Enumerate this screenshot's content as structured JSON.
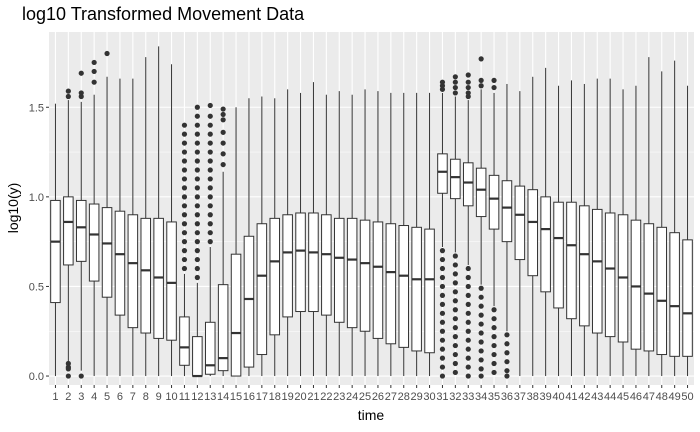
{
  "chart_data": {
    "type": "boxplot",
    "title": "log10 Transformed Movement Data",
    "xlabel": "time",
    "ylabel": "log10(y)",
    "ylim": [
      -0.05,
      1.92
    ],
    "y_ticks": [
      0.0,
      0.5,
      1.0,
      1.5
    ],
    "y_tick_labels": [
      "0.0",
      "0.5",
      "1.0",
      "1.5"
    ],
    "grid": true,
    "panel_background": "#ebebeb",
    "grid_color": "#ffffff",
    "box_fill": "#ffffff",
    "box_stroke": "#333333",
    "categories": [
      "1",
      "2",
      "3",
      "4",
      "5",
      "6",
      "7",
      "8",
      "9",
      "10",
      "11",
      "12",
      "13",
      "14",
      "15",
      "16",
      "17",
      "18",
      "19",
      "20",
      "21",
      "22",
      "23",
      "24",
      "25",
      "26",
      "27",
      "28",
      "29",
      "30",
      "31",
      "32",
      "33",
      "34",
      "35",
      "36",
      "37",
      "38",
      "39",
      "40",
      "41",
      "42",
      "43",
      "44",
      "45",
      "46",
      "47",
      "48",
      "49",
      "50"
    ],
    "boxes": [
      {
        "min": 0.0,
        "q1": 0.41,
        "median": 0.75,
        "q3": 0.98,
        "max": 1.52,
        "outliers": []
      },
      {
        "min": 0.06,
        "q1": 0.62,
        "median": 0.86,
        "q3": 1.0,
        "max": 1.54,
        "outliers": [
          1.56,
          1.59,
          0.07,
          0.05,
          0.04,
          0.0
        ]
      },
      {
        "min": 0.03,
        "q1": 0.64,
        "median": 0.83,
        "q3": 0.98,
        "max": 1.53,
        "outliers": [
          1.56,
          1.58,
          1.69,
          0.0
        ]
      },
      {
        "min": 0.0,
        "q1": 0.53,
        "median": 0.79,
        "q3": 0.96,
        "max": 1.57,
        "outliers": [
          1.64,
          1.7,
          1.75
        ]
      },
      {
        "min": 0.0,
        "q1": 0.44,
        "median": 0.74,
        "q3": 0.94,
        "max": 1.67,
        "outliers": [
          1.8
        ]
      },
      {
        "min": 0.0,
        "q1": 0.34,
        "median": 0.68,
        "q3": 0.92,
        "max": 1.66,
        "outliers": []
      },
      {
        "min": 0.0,
        "q1": 0.27,
        "median": 0.63,
        "q3": 0.9,
        "max": 1.66,
        "outliers": []
      },
      {
        "min": 0.0,
        "q1": 0.24,
        "median": 0.59,
        "q3": 0.88,
        "max": 1.78,
        "outliers": []
      },
      {
        "min": 0.0,
        "q1": 0.21,
        "median": 0.55,
        "q3": 0.88,
        "max": 1.84,
        "outliers": []
      },
      {
        "min": 0.0,
        "q1": 0.2,
        "median": 0.52,
        "q3": 0.86,
        "max": 1.74,
        "outliers": []
      },
      {
        "min": 0.0,
        "q1": 0.06,
        "median": 0.16,
        "q3": 0.33,
        "max": 0.57,
        "outliers": [
          0.6,
          0.65,
          0.7,
          0.75,
          0.8,
          0.85,
          0.9,
          0.95,
          1.0,
          1.05,
          1.1,
          1.15,
          1.2,
          1.25,
          1.3,
          1.35,
          1.4
        ]
      },
      {
        "min": 0.0,
        "q1": 0.0,
        "median": 0.0,
        "q3": 0.22,
        "max": 0.52,
        "outliers": [
          0.55,
          0.6,
          0.65,
          0.7,
          0.75,
          0.8,
          0.85,
          0.9,
          0.95,
          1.0,
          1.05,
          1.1,
          1.15,
          1.2,
          1.25,
          1.3,
          1.35,
          1.4,
          1.45,
          1.5
        ]
      },
      {
        "min": 0.0,
        "q1": 0.01,
        "median": 0.06,
        "q3": 0.3,
        "max": 0.72,
        "outliers": [
          0.75,
          0.8,
          0.85,
          0.9,
          0.95,
          1.0,
          1.05,
          1.1,
          1.15,
          1.2,
          1.25,
          1.3,
          1.35,
          1.4,
          1.45,
          1.51
        ]
      },
      {
        "min": 0.0,
        "q1": 0.03,
        "median": 0.1,
        "q3": 0.51,
        "max": 1.14,
        "outliers": [
          1.18,
          1.24,
          1.3,
          1.36,
          1.43,
          1.46,
          1.49
        ]
      },
      {
        "min": 0.0,
        "q1": 0.0,
        "median": 0.24,
        "q3": 0.68,
        "max": 1.5,
        "outliers": []
      },
      {
        "min": 0.0,
        "q1": 0.05,
        "median": 0.43,
        "q3": 0.78,
        "max": 1.55,
        "outliers": []
      },
      {
        "min": 0.0,
        "q1": 0.12,
        "median": 0.56,
        "q3": 0.85,
        "max": 1.56,
        "outliers": []
      },
      {
        "min": 0.0,
        "q1": 0.23,
        "median": 0.64,
        "q3": 0.88,
        "max": 1.55,
        "outliers": []
      },
      {
        "min": 0.0,
        "q1": 0.33,
        "median": 0.69,
        "q3": 0.9,
        "max": 1.6,
        "outliers": []
      },
      {
        "min": 0.0,
        "q1": 0.36,
        "median": 0.7,
        "q3": 0.91,
        "max": 1.58,
        "outliers": []
      },
      {
        "min": 0.0,
        "q1": 0.36,
        "median": 0.69,
        "q3": 0.91,
        "max": 1.64,
        "outliers": []
      },
      {
        "min": 0.0,
        "q1": 0.34,
        "median": 0.68,
        "q3": 0.9,
        "max": 1.57,
        "outliers": []
      },
      {
        "min": 0.0,
        "q1": 0.3,
        "median": 0.66,
        "q3": 0.88,
        "max": 1.59,
        "outliers": []
      },
      {
        "min": 0.0,
        "q1": 0.27,
        "median": 0.65,
        "q3": 0.88,
        "max": 1.57,
        "outliers": []
      },
      {
        "min": 0.0,
        "q1": 0.25,
        "median": 0.63,
        "q3": 0.87,
        "max": 1.6,
        "outliers": []
      },
      {
        "min": 0.0,
        "q1": 0.21,
        "median": 0.61,
        "q3": 0.86,
        "max": 1.59,
        "outliers": []
      },
      {
        "min": 0.0,
        "q1": 0.18,
        "median": 0.58,
        "q3": 0.85,
        "max": 1.58,
        "outliers": []
      },
      {
        "min": 0.0,
        "q1": 0.16,
        "median": 0.56,
        "q3": 0.84,
        "max": 1.58,
        "outliers": []
      },
      {
        "min": 0.0,
        "q1": 0.14,
        "median": 0.54,
        "q3": 0.83,
        "max": 1.58,
        "outliers": []
      },
      {
        "min": 0.0,
        "q1": 0.13,
        "median": 0.54,
        "q3": 0.82,
        "max": 1.58,
        "outliers": []
      },
      {
        "min": 0.72,
        "q1": 1.02,
        "median": 1.14,
        "q3": 1.24,
        "max": 1.58,
        "outliers": [
          1.6,
          1.62,
          1.64,
          0.7,
          0.65,
          0.6,
          0.55,
          0.5,
          0.45,
          0.4,
          0.35,
          0.3,
          0.25,
          0.2,
          0.15,
          0.1,
          0.05,
          0.0
        ]
      },
      {
        "min": 0.69,
        "q1": 0.99,
        "median": 1.11,
        "q3": 1.21,
        "max": 1.56,
        "outliers": [
          1.58,
          1.61,
          1.64,
          1.67,
          0.67,
          0.62,
          0.57,
          0.52,
          0.47,
          0.42,
          0.37,
          0.32,
          0.27,
          0.22,
          0.17,
          0.12,
          0.07,
          0.02
        ]
      },
      {
        "min": 0.62,
        "q1": 0.95,
        "median": 1.08,
        "q3": 1.19,
        "max": 1.54,
        "outliers": [
          1.56,
          1.58,
          1.61,
          1.64,
          1.68,
          0.6,
          0.55,
          0.5,
          0.45,
          0.4,
          0.35,
          0.3,
          0.25,
          0.2,
          0.15,
          0.1,
          0.05,
          0.0
        ]
      },
      {
        "min": 0.51,
        "q1": 0.89,
        "median": 1.04,
        "q3": 1.16,
        "max": 1.6,
        "outliers": [
          1.62,
          1.65,
          1.77,
          0.49,
          0.44,
          0.39,
          0.34,
          0.29,
          0.24,
          0.19,
          0.14,
          0.09,
          0.04,
          0.0
        ]
      },
      {
        "min": 0.39,
        "q1": 0.82,
        "median": 0.99,
        "q3": 1.12,
        "max": 1.58,
        "outliers": [
          1.61,
          1.65,
          0.37,
          0.32,
          0.27,
          0.22,
          0.17,
          0.12,
          0.07,
          0.02
        ]
      },
      {
        "min": 0.25,
        "q1": 0.75,
        "median": 0.94,
        "q3": 1.09,
        "max": 1.63,
        "outliers": [
          0.23,
          0.18,
          0.13,
          0.08,
          0.03,
          0.0
        ]
      },
      {
        "min": 0.0,
        "q1": 0.65,
        "median": 0.9,
        "q3": 1.06,
        "max": 1.59,
        "outliers": []
      },
      {
        "min": 0.0,
        "q1": 0.56,
        "median": 0.86,
        "q3": 1.04,
        "max": 1.67,
        "outliers": []
      },
      {
        "min": 0.0,
        "q1": 0.47,
        "median": 0.82,
        "q3": 1.0,
        "max": 1.72,
        "outliers": []
      },
      {
        "min": 0.0,
        "q1": 0.38,
        "median": 0.77,
        "q3": 0.97,
        "max": 1.62,
        "outliers": []
      },
      {
        "min": 0.0,
        "q1": 0.32,
        "median": 0.73,
        "q3": 0.97,
        "max": 1.65,
        "outliers": []
      },
      {
        "min": 0.0,
        "q1": 0.28,
        "median": 0.68,
        "q3": 0.95,
        "max": 1.63,
        "outliers": []
      },
      {
        "min": 0.0,
        "q1": 0.24,
        "median": 0.64,
        "q3": 0.93,
        "max": 1.66,
        "outliers": []
      },
      {
        "min": 0.0,
        "q1": 0.22,
        "median": 0.6,
        "q3": 0.91,
        "max": 1.66,
        "outliers": []
      },
      {
        "min": 0.0,
        "q1": 0.19,
        "median": 0.55,
        "q3": 0.9,
        "max": 1.6,
        "outliers": []
      },
      {
        "min": 0.0,
        "q1": 0.15,
        "median": 0.5,
        "q3": 0.87,
        "max": 1.62,
        "outliers": []
      },
      {
        "min": 0.0,
        "q1": 0.14,
        "median": 0.46,
        "q3": 0.85,
        "max": 1.78,
        "outliers": []
      },
      {
        "min": 0.0,
        "q1": 0.12,
        "median": 0.42,
        "q3": 0.83,
        "max": 1.7,
        "outliers": []
      },
      {
        "min": 0.0,
        "q1": 0.11,
        "median": 0.39,
        "q3": 0.8,
        "max": 1.76,
        "outliers": []
      },
      {
        "min": 0.0,
        "q1": 0.11,
        "median": 0.35,
        "q3": 0.76,
        "max": 1.62,
        "outliers": []
      }
    ]
  }
}
